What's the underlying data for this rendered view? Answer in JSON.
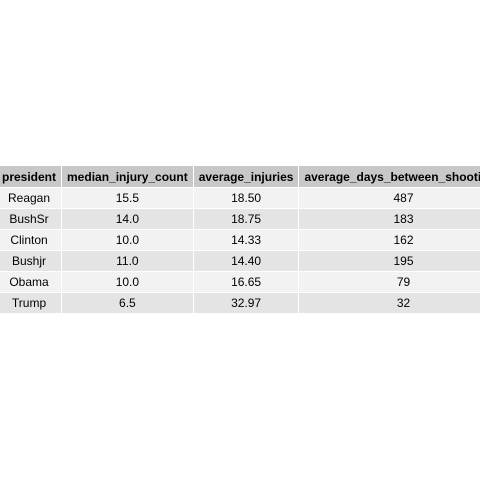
{
  "table": {
    "columns": [
      "president",
      "median_injury_count",
      "average_injuries",
      "average_days_between_shootings"
    ],
    "rows": [
      [
        "Reagan",
        "15.5",
        "18.50",
        "487"
      ],
      [
        "BushSr",
        "14.0",
        "18.75",
        "183"
      ],
      [
        "Clinton",
        "10.0",
        "14.33",
        "162"
      ],
      [
        "Bushjr",
        "11.0",
        "14.40",
        "195"
      ],
      [
        "Obama",
        "10.0",
        "16.65",
        "79"
      ],
      [
        "Trump",
        "6.5",
        "32.97",
        "32"
      ]
    ]
  }
}
